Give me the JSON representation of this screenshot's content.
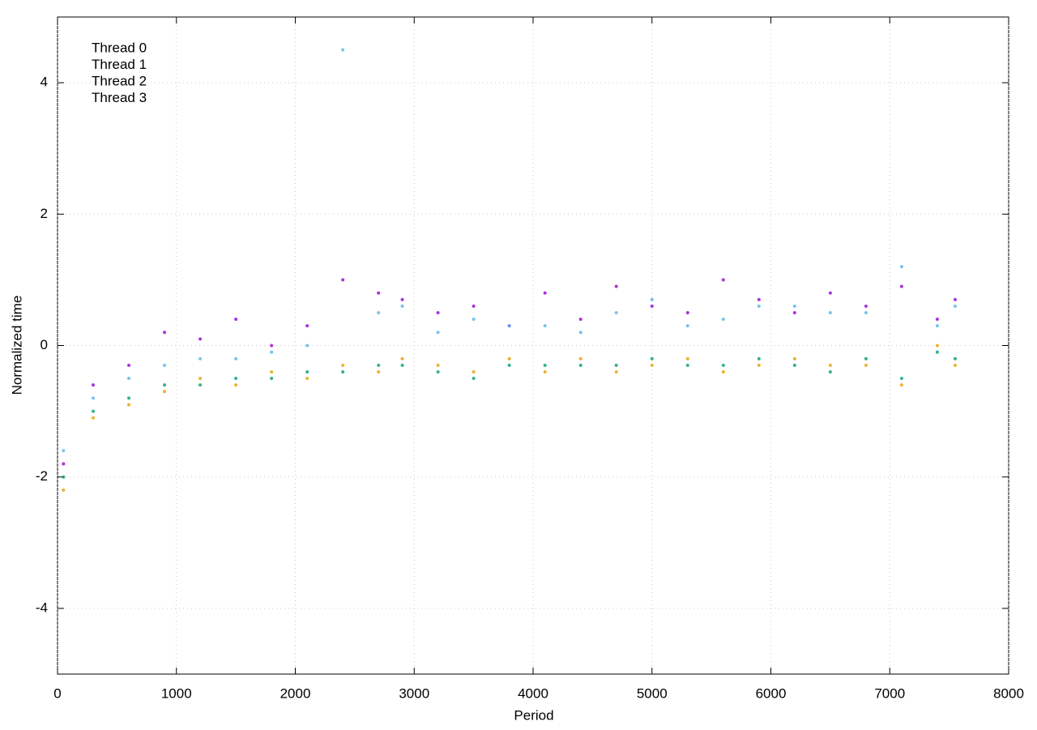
{
  "chart_data": {
    "type": "scatter",
    "xlabel": "Period",
    "ylabel": "Normalized time",
    "xlim": [
      0,
      8000
    ],
    "xticks": [
      0,
      1000,
      2000,
      3000,
      4000,
      5000,
      6000,
      7000,
      8000
    ],
    "ylim": [
      -5,
      5
    ],
    "yticks": [
      -4,
      -2,
      0,
      2,
      4
    ],
    "grid": true,
    "legend": "top-left",
    "x": [
      50,
      300,
      600,
      900,
      1200,
      1500,
      1800,
      2100,
      2400,
      2700,
      2900,
      3200,
      3500,
      3800,
      4100,
      4400,
      4700,
      5000,
      5300,
      5600,
      5900,
      6200,
      6500,
      6800,
      7100,
      7400,
      7550
    ],
    "series": [
      {
        "name": "Thread 0",
        "color": "#9400d3",
        "values": [
          -1.8,
          -0.6,
          -0.3,
          0.2,
          0.1,
          0.4,
          0.0,
          0.3,
          1.0,
          0.8,
          0.7,
          0.5,
          0.6,
          0.3,
          0.8,
          0.4,
          0.9,
          0.6,
          0.5,
          1.0,
          0.7,
          0.5,
          0.8,
          0.6,
          0.9,
          0.4,
          0.7
        ]
      },
      {
        "name": "Thread 1",
        "color": "#009e73",
        "values": [
          -2.0,
          -1.0,
          -0.8,
          -0.6,
          -0.6,
          -0.5,
          -0.5,
          -0.4,
          -0.4,
          -0.3,
          -0.3,
          -0.4,
          -0.5,
          -0.3,
          -0.3,
          -0.3,
          -0.3,
          -0.2,
          -0.3,
          -0.3,
          -0.2,
          -0.3,
          -0.4,
          -0.2,
          -0.5,
          -0.1,
          -0.2
        ]
      },
      {
        "name": "Thread 2",
        "color": "#56b4e9",
        "values": [
          -1.6,
          -0.8,
          -0.5,
          -0.3,
          -0.2,
          -0.2,
          -0.1,
          0.0,
          4.5,
          0.5,
          0.6,
          0.2,
          0.4,
          0.3,
          0.3,
          0.2,
          0.5,
          0.7,
          0.3,
          0.4,
          0.6,
          0.6,
          0.5,
          0.5,
          1.2,
          0.3,
          0.6
        ]
      },
      {
        "name": "Thread 3",
        "color": "#e69f00",
        "values": [
          -2.2,
          -1.1,
          -0.9,
          -0.7,
          -0.5,
          -0.6,
          -0.4,
          -0.5,
          -0.3,
          -0.4,
          -0.2,
          -0.3,
          -0.4,
          -0.2,
          -0.4,
          -0.2,
          -0.4,
          -0.3,
          -0.2,
          -0.4,
          -0.3,
          -0.2,
          -0.3,
          -0.3,
          -0.6,
          0.0,
          -0.3
        ]
      }
    ]
  }
}
